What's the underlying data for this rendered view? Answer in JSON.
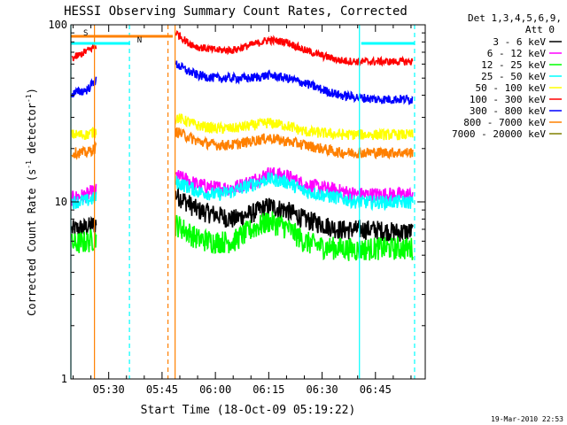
{
  "chart_data": {
    "type": "line",
    "title": "HESSI Observing Summary Count Rates, Corrected",
    "xlabel": "Start Time (18-Oct-09 05:19:22)",
    "ylabel_main": "Corrected Count Rate (s",
    "ylabel_sup1": "-1",
    "ylabel_mid": " detector",
    "ylabel_sup2": "-1",
    "ylabel_end": ")",
    "y_scale": "log",
    "ylim": [
      1,
      100
    ],
    "xlim": [
      "05:19:22",
      "06:59:00"
    ],
    "x_ticks": [
      "05:30",
      "05:45",
      "06:00",
      "06:15",
      "06:30",
      "06:45"
    ],
    "y_ticks": [
      "1",
      "10",
      "100"
    ],
    "legend_title": "Det 1,3,4,5,6,9,",
    "legend_att": "Att 0",
    "legend_placement": "right",
    "timestamp": "19-Mar-2010 22:53",
    "flags": [
      {
        "label": "S",
        "color": "#ff8000",
        "start": "05:19:22",
        "end": "05:48:00"
      },
      {
        "label": "N",
        "color": "#00ffff",
        "start": "05:19:22",
        "end": "05:36:00"
      },
      {
        "label": "",
        "color": "#00ffff",
        "start": "06:41:00",
        "end": "06:56:00"
      }
    ],
    "vlines": [
      {
        "time": "05:19:22",
        "color": "#00ffff",
        "style": "solid"
      },
      {
        "time": "05:26:00",
        "color": "#ff8000",
        "style": "solid"
      },
      {
        "time": "05:35:50",
        "color": "#00ffff",
        "style": "dashed"
      },
      {
        "time": "05:46:40",
        "color": "#ff8000",
        "style": "dashed"
      },
      {
        "time": "05:48:40",
        "color": "#ff8000",
        "style": "solid"
      },
      {
        "time": "06:40:30",
        "color": "#00ffff",
        "style": "solid"
      },
      {
        "time": "06:56:00",
        "color": "#00ffff",
        "style": "dashed"
      }
    ],
    "series": [
      {
        "name": "3 - 6 keV",
        "color": "#000000",
        "points": [
          [
            "05:20",
            7.0
          ],
          [
            "05:24",
            7.2
          ],
          [
            "05:26",
            7.5
          ],
          [
            "05:49",
            11.0
          ],
          [
            "05:55",
            9.0
          ],
          [
            "06:00",
            8.5
          ],
          [
            "06:05",
            8.0
          ],
          [
            "06:10",
            8.6
          ],
          [
            "06:15",
            9.5
          ],
          [
            "06:20",
            9.0
          ],
          [
            "06:25",
            8.0
          ],
          [
            "06:30",
            7.5
          ],
          [
            "06:35",
            7.0
          ],
          [
            "06:40",
            7.0
          ],
          [
            "06:45",
            7.0
          ],
          [
            "06:50",
            6.8
          ],
          [
            "06:55",
            6.8
          ]
        ]
      },
      {
        "name": "6 - 12 keV",
        "color": "#ff00ff",
        "points": [
          [
            "05:20",
            10.5
          ],
          [
            "05:24",
            11.0
          ],
          [
            "05:26",
            11.5
          ],
          [
            "05:49",
            14.0
          ],
          [
            "05:55",
            12.5
          ],
          [
            "06:00",
            12.0
          ],
          [
            "06:05",
            12.0
          ],
          [
            "06:10",
            13.0
          ],
          [
            "06:15",
            14.5
          ],
          [
            "06:20",
            14.0
          ],
          [
            "06:25",
            12.5
          ],
          [
            "06:30",
            12.0
          ],
          [
            "06:35",
            11.5
          ],
          [
            "06:40",
            11.0
          ],
          [
            "06:45",
            11.0
          ],
          [
            "06:50",
            11.0
          ],
          [
            "06:55",
            11.0
          ]
        ]
      },
      {
        "name": "12 - 25 keV",
        "color": "#00ff00",
        "points": [
          [
            "05:20",
            5.8
          ],
          [
            "05:24",
            6.0
          ],
          [
            "05:26",
            6.2
          ],
          [
            "05:49",
            7.5
          ],
          [
            "05:55",
            6.2
          ],
          [
            "06:00",
            6.0
          ],
          [
            "06:05",
            6.0
          ],
          [
            "06:10",
            7.0
          ],
          [
            "06:15",
            7.8
          ],
          [
            "06:20",
            7.2
          ],
          [
            "06:25",
            6.0
          ],
          [
            "06:30",
            5.6
          ],
          [
            "06:35",
            5.5
          ],
          [
            "06:40",
            5.4
          ],
          [
            "06:45",
            5.5
          ],
          [
            "06:50",
            5.5
          ],
          [
            "06:55",
            5.5
          ]
        ]
      },
      {
        "name": "25 - 50 keV",
        "color": "#00ffff",
        "points": [
          [
            "05:20",
            10.0
          ],
          [
            "05:24",
            10.2
          ],
          [
            "05:26",
            10.5
          ],
          [
            "05:49",
            13.0
          ],
          [
            "05:55",
            11.5
          ],
          [
            "06:00",
            11.0
          ],
          [
            "06:05",
            11.5
          ],
          [
            "06:10",
            12.5
          ],
          [
            "06:15",
            13.5
          ],
          [
            "06:20",
            13.0
          ],
          [
            "06:25",
            11.5
          ],
          [
            "06:30",
            11.0
          ],
          [
            "06:35",
            10.5
          ],
          [
            "06:40",
            10.0
          ],
          [
            "06:45",
            10.0
          ],
          [
            "06:50",
            10.0
          ],
          [
            "06:55",
            10.0
          ]
        ]
      },
      {
        "name": "50 - 100 keV",
        "color": "#ffff00",
        "points": [
          [
            "05:20",
            24.0
          ],
          [
            "05:24",
            24.0
          ],
          [
            "05:26",
            25.0
          ],
          [
            "05:49",
            30.0
          ],
          [
            "05:55",
            27.0
          ],
          [
            "06:00",
            26.0
          ],
          [
            "06:05",
            26.0
          ],
          [
            "06:10",
            27.0
          ],
          [
            "06:15",
            28.0
          ],
          [
            "06:20",
            27.0
          ],
          [
            "06:25",
            25.0
          ],
          [
            "06:30",
            24.5
          ],
          [
            "06:35",
            24.0
          ],
          [
            "06:40",
            24.0
          ],
          [
            "06:45",
            24.0
          ],
          [
            "06:50",
            24.0
          ],
          [
            "06:55",
            24.0
          ]
        ]
      },
      {
        "name": "100 - 300 keV",
        "color": "#ff0000",
        "points": [
          [
            "05:20",
            65.0
          ],
          [
            "05:22",
            68.0
          ],
          [
            "05:26",
            75.0
          ],
          [
            "05:49",
            90.0
          ],
          [
            "05:52",
            80.0
          ],
          [
            "05:55",
            75.0
          ],
          [
            "06:00",
            72.0
          ],
          [
            "06:05",
            72.0
          ],
          [
            "06:10",
            77.0
          ],
          [
            "06:15",
            82.0
          ],
          [
            "06:20",
            80.0
          ],
          [
            "06:25",
            72.0
          ],
          [
            "06:30",
            67.0
          ],
          [
            "06:35",
            63.0
          ],
          [
            "06:40",
            62.0
          ],
          [
            "06:45",
            62.0
          ],
          [
            "06:50",
            62.0
          ],
          [
            "06:55",
            62.0
          ]
        ]
      },
      {
        "name": "300 - 800 keV",
        "color": "#0000ff",
        "points": [
          [
            "05:20",
            41.0
          ],
          [
            "05:24",
            43.0
          ],
          [
            "05:26",
            48.0
          ],
          [
            "05:49",
            60.0
          ],
          [
            "05:52",
            55.0
          ],
          [
            "05:55",
            52.0
          ],
          [
            "06:00",
            50.0
          ],
          [
            "06:05",
            50.0
          ],
          [
            "06:10",
            50.0
          ],
          [
            "06:15",
            52.0
          ],
          [
            "06:20",
            50.0
          ],
          [
            "06:25",
            47.0
          ],
          [
            "06:30",
            43.0
          ],
          [
            "06:35",
            40.0
          ],
          [
            "06:40",
            39.0
          ],
          [
            "06:45",
            38.0
          ],
          [
            "06:50",
            38.0
          ],
          [
            "06:55",
            38.0
          ]
        ]
      },
      {
        "name": "800 - 7000 keV",
        "color": "#ff8000",
        "points": [
          [
            "05:20",
            19.0
          ],
          [
            "05:24",
            19.0
          ],
          [
            "05:26",
            20.0
          ],
          [
            "05:49",
            25.0
          ],
          [
            "05:55",
            22.0
          ],
          [
            "06:00",
            21.0
          ],
          [
            "06:05",
            21.0
          ],
          [
            "06:10",
            22.0
          ],
          [
            "06:15",
            23.0
          ],
          [
            "06:20",
            22.0
          ],
          [
            "06:25",
            21.0
          ],
          [
            "06:30",
            20.0
          ],
          [
            "06:35",
            19.0
          ],
          [
            "06:40",
            19.0
          ],
          [
            "06:45",
            19.0
          ],
          [
            "06:50",
            19.0
          ],
          [
            "06:55",
            19.0
          ]
        ]
      },
      {
        "name": "7000 - 20000 keV",
        "color": "#808000",
        "points": []
      }
    ]
  }
}
